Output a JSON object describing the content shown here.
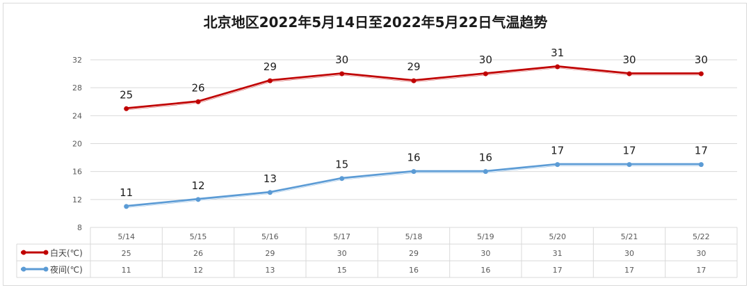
{
  "chart_data": {
    "type": "line",
    "title": "北京地区2022年5月14日至2022年5月22日气温趋势",
    "categories": [
      "5/14",
      "5/15",
      "5/16",
      "5/17",
      "5/18",
      "5/19",
      "5/20",
      "5/21",
      "5/22"
    ],
    "series": [
      {
        "name": "白天(℃)",
        "values": [
          25,
          26,
          29,
          30,
          29,
          30,
          31,
          30,
          30
        ],
        "color": "#c00000"
      },
      {
        "name": "夜间(℃)",
        "values": [
          11,
          12,
          13,
          15,
          16,
          16,
          17,
          17,
          17
        ],
        "color": "#5b9bd5"
      }
    ],
    "yticks": [
      "8",
      "12",
      "16",
      "20",
      "24",
      "28",
      "32"
    ],
    "ylim": [
      8,
      32
    ],
    "grid": true,
    "legend": "data-table-left",
    "xlabel": "",
    "ylabel": ""
  }
}
